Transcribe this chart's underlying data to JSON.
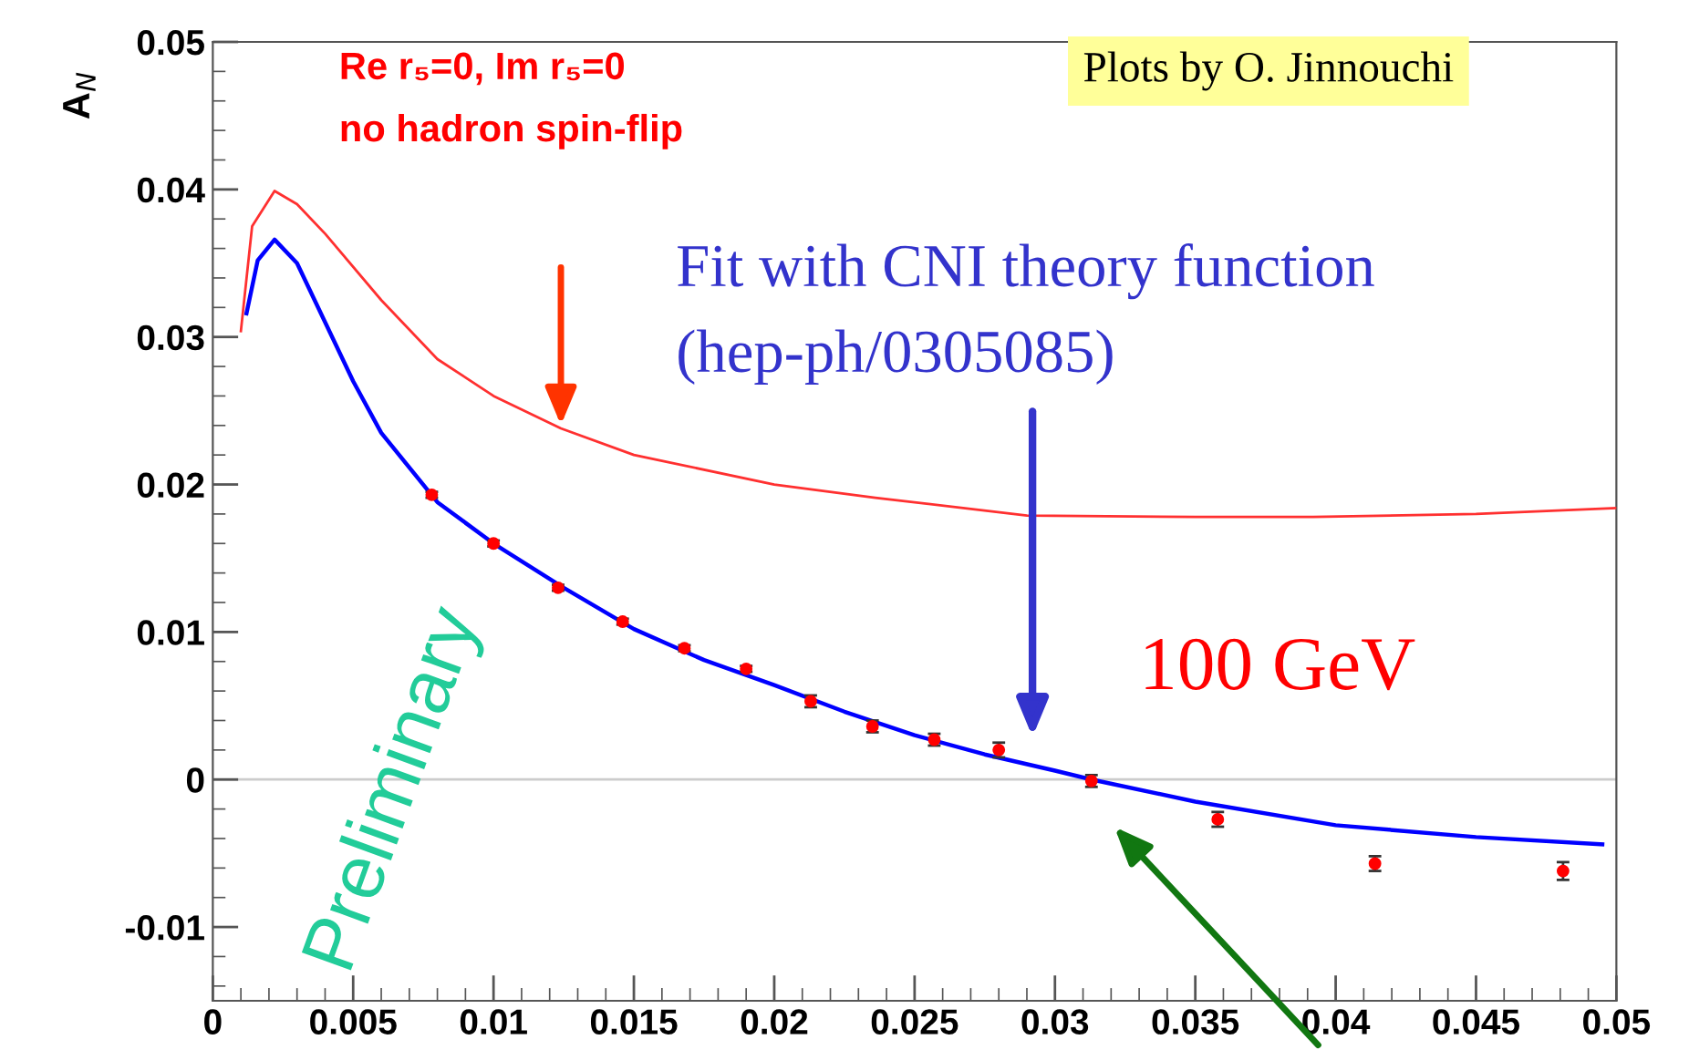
{
  "chart_data": {
    "type": "scatter",
    "ylabel": "A$_{N}$",
    "xlim": [
      0,
      0.05
    ],
    "ylim": [
      -0.015,
      0.05
    ],
    "xticks": [
      0,
      0.005,
      0.01,
      0.015,
      0.02,
      0.025,
      0.03,
      0.035,
      0.04,
      0.045,
      0.05
    ],
    "yticks": [
      -0.01,
      0,
      0.01,
      0.02,
      0.03,
      0.04,
      0.05
    ],
    "grid": false,
    "x": [
      0.0078,
      0.01,
      0.0123,
      0.0146,
      0.0168,
      0.019,
      0.0213,
      0.0235,
      0.0257,
      0.028,
      0.0313,
      0.0358,
      0.0414,
      0.0481
    ],
    "series": [
      {
        "marker": "circle",
        "color": "#ff0000",
        "values": [
          0.0193,
          0.016,
          0.013,
          0.0107,
          0.0089,
          0.0075,
          0.0053,
          0.0036,
          0.0027,
          0.002,
          -0.0001,
          -0.0027,
          -0.0057,
          -0.0062
        ],
        "errors": [
          0.0002,
          0.0002,
          0.0002,
          0.0002,
          0.0002,
          0.0002,
          0.0004,
          0.0004,
          0.0004,
          0.0005,
          0.0004,
          0.0005,
          0.0005,
          0.0006
        ]
      },
      {
        "type": "line",
        "color": "#0000ff",
        "line_style": "solid",
        "x": [
          0.0012,
          0.0016,
          0.0022,
          0.003,
          0.004,
          0.005,
          0.006,
          0.008,
          0.01,
          0.0125,
          0.015,
          0.0175,
          0.02,
          0.0225,
          0.025,
          0.0275,
          0.03,
          0.0313,
          0.035,
          0.04,
          0.045,
          0.0495
        ],
        "values": [
          0.0316,
          0.0352,
          0.0366,
          0.035,
          0.031,
          0.027,
          0.0235,
          0.0188,
          0.016,
          0.013,
          0.0102,
          0.0081,
          0.0064,
          0.0046,
          0.003,
          0.0017,
          0.0006,
          0.0,
          -0.0015,
          -0.0031,
          -0.0039,
          -0.0044
        ]
      },
      {
        "type": "line",
        "color": "#ff3030",
        "line_style": "solid",
        "x": [
          0.001,
          0.0014,
          0.0022,
          0.003,
          0.004,
          0.006,
          0.008,
          0.01,
          0.0124,
          0.015,
          0.02,
          0.0236,
          0.029,
          0.035,
          0.0392,
          0.045,
          0.05
        ],
        "values": [
          0.0304,
          0.0375,
          0.0399,
          0.039,
          0.037,
          0.0325,
          0.0285,
          0.026,
          0.0238,
          0.022,
          0.02,
          0.0191,
          0.0179,
          0.0178,
          0.0178,
          0.018,
          0.0184
        ]
      }
    ],
    "ref_lines": [
      {
        "axis": "y",
        "value": 0,
        "color": "#cccccc"
      }
    ],
    "annotations": [
      "Re r₅=0, Im r₅=0",
      "no hadron spin-flip",
      "Plots by O. Jinnouchi",
      "Fit with CNI theory function",
      "(hep-ph/0305085)",
      "100 GeV",
      "Preliminary"
    ]
  }
}
